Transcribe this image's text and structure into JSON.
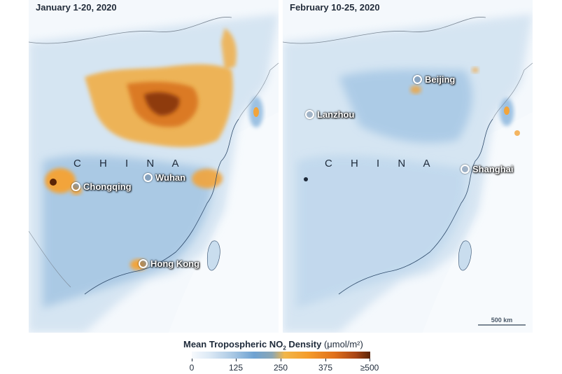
{
  "panels": [
    {
      "title": "January 1-20, 2020",
      "country_label": "C H I N A",
      "cities": [
        {
          "name": "Wuhan"
        },
        {
          "name": "Chongqing"
        },
        {
          "name": "Hong Kong"
        }
      ]
    },
    {
      "title": "February 10-25, 2020",
      "country_label": "C H I N A",
      "cities": [
        {
          "name": "Beijing"
        },
        {
          "name": "Lanzhou"
        },
        {
          "name": "Shanghai"
        }
      ],
      "scale_label": "500 km"
    }
  ],
  "legend": {
    "title_bold": "Mean Tropospheric NO",
    "subscript": "2",
    "title_bold_end": " Density",
    "unit": "(μmol/m²)",
    "ticks": [
      "0",
      "125",
      "250",
      "375",
      "≥500"
    ],
    "colors": [
      "#f6f9fd",
      "#aecbe5",
      "#6ea2d2",
      "#f2b64a",
      "#f59c2a",
      "#e0701c",
      "#a84414",
      "#5b2406"
    ]
  }
}
